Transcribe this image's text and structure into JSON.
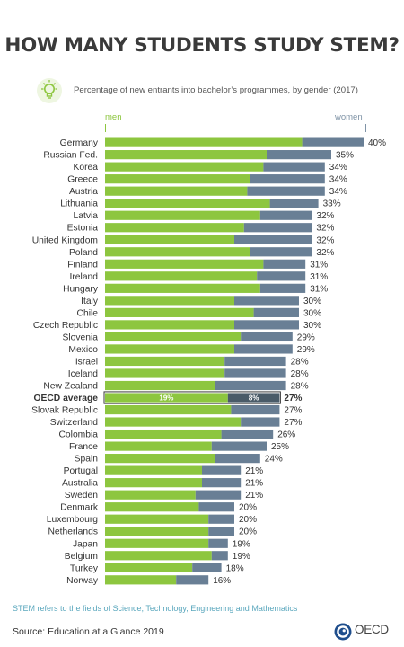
{
  "title": "HOW MANY STUDENTS STUDY STEM?",
  "subtitle": "Percentage of new entrants into bachelor’s programmes, by gender (2017)",
  "legend": {
    "men": "men",
    "women": "women"
  },
  "note": "STEM refers to the fields of Science, Technology, Engineering and Mathematics",
  "source": "Source: Education at a Glance 2019",
  "brand": "OECD",
  "icon": "lightbulb-icon",
  "colors": {
    "men": "#8dc63f",
    "women": "#697f95",
    "note": "#5aa7bd",
    "highlight_women": "#4a5b68"
  },
  "chart_data": {
    "type": "bar",
    "orientation": "horizontal",
    "stacked": true,
    "categories": [
      "Germany",
      "Russian Fed.",
      "Korea",
      "Greece",
      "Austria",
      "Lithuania",
      "Latvia",
      "Estonia",
      "United Kingdom",
      "Poland",
      "Finland",
      "Ireland",
      "Hungary",
      "Italy",
      "Chile",
      "Czech Republic",
      "Slovenia",
      "Mexico",
      "Israel",
      "Iceland",
      "New Zealand",
      "OECD average",
      "Slovak Republic",
      "Switzerland",
      "Colombia",
      "France",
      "Spain",
      "Portugal",
      "Australia",
      "Sweden",
      "Denmark",
      "Luxembourg",
      "Netherlands",
      "Japan",
      "Belgium",
      "Turkey",
      "Norway"
    ],
    "series": [
      {
        "name": "men",
        "values": [
          30.5,
          25,
          24.5,
          22.5,
          22,
          25.5,
          24,
          21.5,
          20,
          22.5,
          24.5,
          23.5,
          24,
          20,
          23,
          20,
          21,
          20,
          18.5,
          18.5,
          17,
          19,
          19.5,
          21,
          18,
          16.5,
          17,
          15,
          15,
          14,
          14.5,
          16,
          16,
          16,
          16.5,
          13.5,
          11
        ]
      },
      {
        "name": "women",
        "values": [
          9.5,
          10,
          9.5,
          11.5,
          12,
          7.5,
          8,
          10.5,
          12,
          9.5,
          6.5,
          7.5,
          7,
          10,
          7,
          10,
          8,
          9,
          9.5,
          9.5,
          11,
          8,
          7.5,
          6,
          8,
          8.5,
          7,
          6,
          6,
          7,
          5.5,
          4,
          4,
          3,
          2.5,
          4.5,
          5
        ]
      }
    ],
    "totals": [
      "40%",
      "35%",
      "34%",
      "34%",
      "34%",
      "33%",
      "32%",
      "32%",
      "32%",
      "32%",
      "31%",
      "31%",
      "31%",
      "30%",
      "30%",
      "30%",
      "29%",
      "29%",
      "28%",
      "28%",
      "28%",
      "27%",
      "27%",
      "27%",
      "26%",
      "25%",
      "24%",
      "21%",
      "21%",
      "21%",
      "20%",
      "20%",
      "20%",
      "19%",
      "19%",
      "18%",
      "16%"
    ],
    "highlight": {
      "category": "OECD average",
      "men_label": "19%",
      "women_label": "8%"
    }
  }
}
